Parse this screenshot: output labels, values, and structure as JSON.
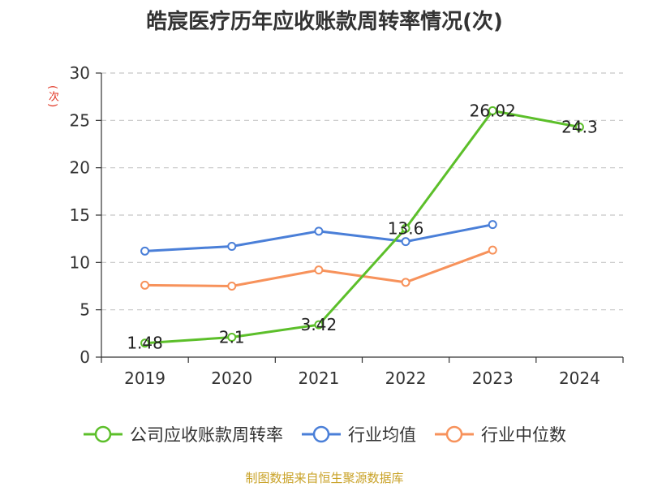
{
  "chart_data": {
    "type": "line",
    "title": "皓宸医疗历年应收账款周转率情况(次)",
    "ylabel": "(次)",
    "categories": [
      "2019",
      "2020",
      "2021",
      "2022",
      "2023",
      "2024"
    ],
    "ylim": [
      0,
      30
    ],
    "yticks": [
      "0",
      "5",
      "10",
      "15",
      "20",
      "25",
      "30"
    ],
    "grid": true,
    "legend_position": "bottom",
    "series": [
      {
        "name": "公司应收账款周转率",
        "color": "#5cbf2a",
        "values": [
          1.48,
          2.1,
          3.42,
          13.6,
          26.02,
          24.3
        ],
        "labels": [
          "1.48",
          "2.1",
          "3.42",
          "13.6",
          "26.02",
          "24.3"
        ]
      },
      {
        "name": "行业均值",
        "color": "#4a7fd8",
        "values": [
          11.2,
          11.7,
          13.3,
          12.2,
          14.0,
          null
        ]
      },
      {
        "name": "行业中位数",
        "color": "#f7925b",
        "values": [
          7.6,
          7.5,
          9.2,
          7.9,
          11.3,
          null
        ]
      }
    ]
  },
  "source_text": "制图数据来自恒生聚源数据库"
}
